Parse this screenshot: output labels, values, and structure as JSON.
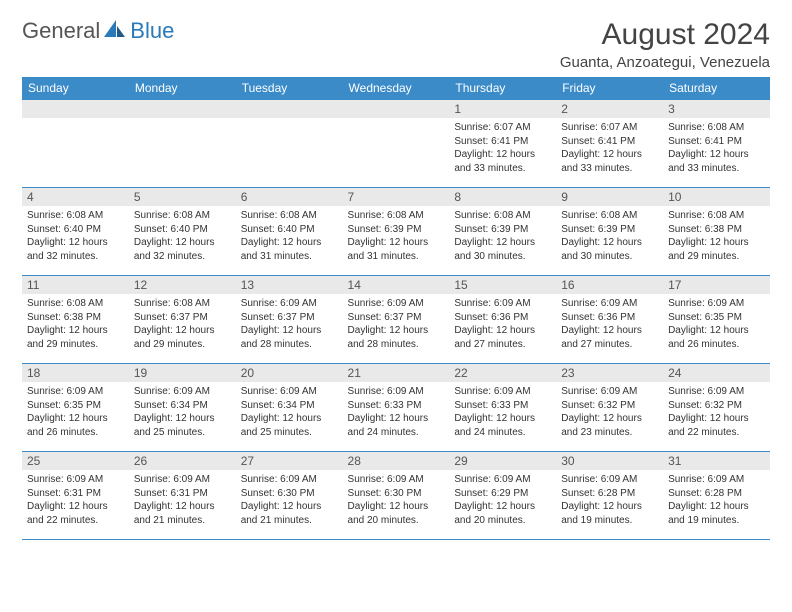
{
  "logo": {
    "word1": "General",
    "word2": "Blue"
  },
  "title": "August 2024",
  "location": "Guanta, Anzoategui, Venezuela",
  "colors": {
    "header_bg": "#3b8bc9",
    "header_fg": "#ffffff",
    "daynum_bg": "#e9e9e9",
    "rule": "#3b8bc9",
    "logo_gray": "#555555",
    "logo_blue": "#2a7ab9"
  },
  "typography": {
    "title_fontsize": 30,
    "location_fontsize": 15,
    "dayheader_fontsize": 12,
    "body_fontsize": 10
  },
  "day_headers": [
    "Sunday",
    "Monday",
    "Tuesday",
    "Wednesday",
    "Thursday",
    "Friday",
    "Saturday"
  ],
  "weeks": [
    [
      null,
      null,
      null,
      null,
      {
        "n": "1",
        "sunrise": "6:07 AM",
        "sunset": "6:41 PM",
        "daylight": "12 hours and 33 minutes."
      },
      {
        "n": "2",
        "sunrise": "6:07 AM",
        "sunset": "6:41 PM",
        "daylight": "12 hours and 33 minutes."
      },
      {
        "n": "3",
        "sunrise": "6:08 AM",
        "sunset": "6:41 PM",
        "daylight": "12 hours and 33 minutes."
      }
    ],
    [
      {
        "n": "4",
        "sunrise": "6:08 AM",
        "sunset": "6:40 PM",
        "daylight": "12 hours and 32 minutes."
      },
      {
        "n": "5",
        "sunrise": "6:08 AM",
        "sunset": "6:40 PM",
        "daylight": "12 hours and 32 minutes."
      },
      {
        "n": "6",
        "sunrise": "6:08 AM",
        "sunset": "6:40 PM",
        "daylight": "12 hours and 31 minutes."
      },
      {
        "n": "7",
        "sunrise": "6:08 AM",
        "sunset": "6:39 PM",
        "daylight": "12 hours and 31 minutes."
      },
      {
        "n": "8",
        "sunrise": "6:08 AM",
        "sunset": "6:39 PM",
        "daylight": "12 hours and 30 minutes."
      },
      {
        "n": "9",
        "sunrise": "6:08 AM",
        "sunset": "6:39 PM",
        "daylight": "12 hours and 30 minutes."
      },
      {
        "n": "10",
        "sunrise": "6:08 AM",
        "sunset": "6:38 PM",
        "daylight": "12 hours and 29 minutes."
      }
    ],
    [
      {
        "n": "11",
        "sunrise": "6:08 AM",
        "sunset": "6:38 PM",
        "daylight": "12 hours and 29 minutes."
      },
      {
        "n": "12",
        "sunrise": "6:08 AM",
        "sunset": "6:37 PM",
        "daylight": "12 hours and 29 minutes."
      },
      {
        "n": "13",
        "sunrise": "6:09 AM",
        "sunset": "6:37 PM",
        "daylight": "12 hours and 28 minutes."
      },
      {
        "n": "14",
        "sunrise": "6:09 AM",
        "sunset": "6:37 PM",
        "daylight": "12 hours and 28 minutes."
      },
      {
        "n": "15",
        "sunrise": "6:09 AM",
        "sunset": "6:36 PM",
        "daylight": "12 hours and 27 minutes."
      },
      {
        "n": "16",
        "sunrise": "6:09 AM",
        "sunset": "6:36 PM",
        "daylight": "12 hours and 27 minutes."
      },
      {
        "n": "17",
        "sunrise": "6:09 AM",
        "sunset": "6:35 PM",
        "daylight": "12 hours and 26 minutes."
      }
    ],
    [
      {
        "n": "18",
        "sunrise": "6:09 AM",
        "sunset": "6:35 PM",
        "daylight": "12 hours and 26 minutes."
      },
      {
        "n": "19",
        "sunrise": "6:09 AM",
        "sunset": "6:34 PM",
        "daylight": "12 hours and 25 minutes."
      },
      {
        "n": "20",
        "sunrise": "6:09 AM",
        "sunset": "6:34 PM",
        "daylight": "12 hours and 25 minutes."
      },
      {
        "n": "21",
        "sunrise": "6:09 AM",
        "sunset": "6:33 PM",
        "daylight": "12 hours and 24 minutes."
      },
      {
        "n": "22",
        "sunrise": "6:09 AM",
        "sunset": "6:33 PM",
        "daylight": "12 hours and 24 minutes."
      },
      {
        "n": "23",
        "sunrise": "6:09 AM",
        "sunset": "6:32 PM",
        "daylight": "12 hours and 23 minutes."
      },
      {
        "n": "24",
        "sunrise": "6:09 AM",
        "sunset": "6:32 PM",
        "daylight": "12 hours and 22 minutes."
      }
    ],
    [
      {
        "n": "25",
        "sunrise": "6:09 AM",
        "sunset": "6:31 PM",
        "daylight": "12 hours and 22 minutes."
      },
      {
        "n": "26",
        "sunrise": "6:09 AM",
        "sunset": "6:31 PM",
        "daylight": "12 hours and 21 minutes."
      },
      {
        "n": "27",
        "sunrise": "6:09 AM",
        "sunset": "6:30 PM",
        "daylight": "12 hours and 21 minutes."
      },
      {
        "n": "28",
        "sunrise": "6:09 AM",
        "sunset": "6:30 PM",
        "daylight": "12 hours and 20 minutes."
      },
      {
        "n": "29",
        "sunrise": "6:09 AM",
        "sunset": "6:29 PM",
        "daylight": "12 hours and 20 minutes."
      },
      {
        "n": "30",
        "sunrise": "6:09 AM",
        "sunset": "6:28 PM",
        "daylight": "12 hours and 19 minutes."
      },
      {
        "n": "31",
        "sunrise": "6:09 AM",
        "sunset": "6:28 PM",
        "daylight": "12 hours and 19 minutes."
      }
    ]
  ],
  "labels": {
    "sunrise": "Sunrise:",
    "sunset": "Sunset:",
    "daylight": "Daylight:"
  }
}
